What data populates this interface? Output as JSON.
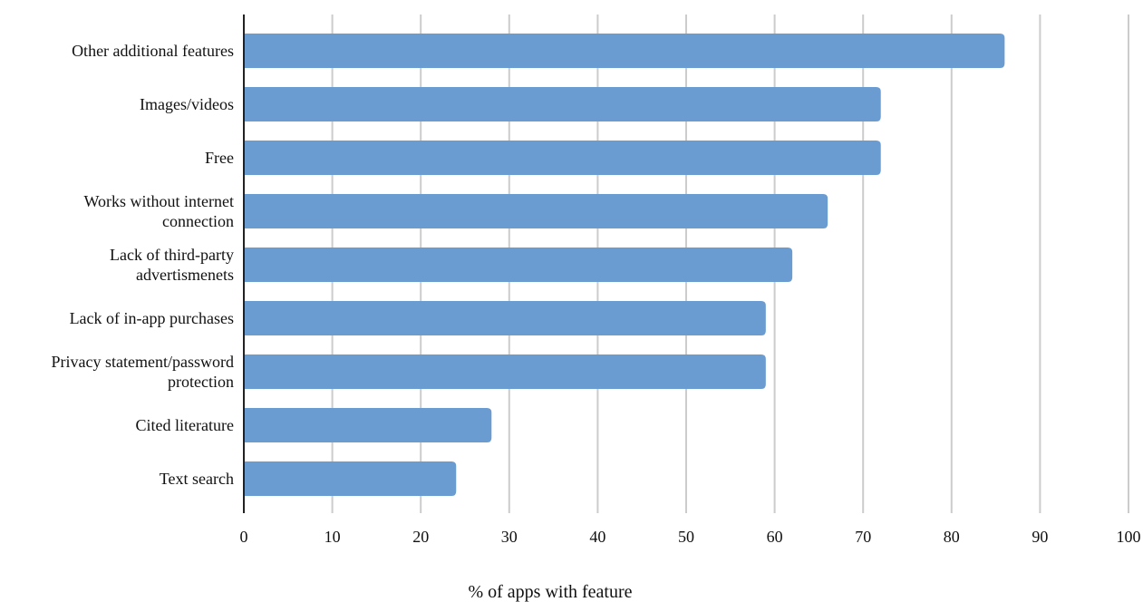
{
  "chart_data": {
    "type": "bar",
    "orientation": "horizontal",
    "categories": [
      "Other additional features",
      "Images/videos",
      "Free",
      "Works without internet connection",
      "Lack of third-party advertismenets",
      "Lack of in-app purchases",
      "Privacy statement/password protection",
      "Cited literature",
      "Text search"
    ],
    "category_lines": [
      [
        "Other additional features"
      ],
      [
        "Images/videos"
      ],
      [
        "Free"
      ],
      [
        "Works without internet",
        "connection"
      ],
      [
        "Lack of third-party",
        "advertismenets"
      ],
      [
        "Lack of in-app purchases"
      ],
      [
        "Privacy statement/password",
        "protection"
      ],
      [
        "Cited literature"
      ],
      [
        "Text search"
      ]
    ],
    "values": [
      86,
      72,
      72,
      66,
      62,
      59,
      59,
      28,
      24
    ],
    "xlabel": "% of apps with feature",
    "ylabel": "",
    "xlim": [
      0,
      100
    ],
    "xticks": [
      0,
      10,
      20,
      30,
      40,
      50,
      60,
      70,
      80,
      90,
      100
    ],
    "grid": "vertical",
    "legend": "none",
    "bar_color": "#6a9bd1"
  }
}
